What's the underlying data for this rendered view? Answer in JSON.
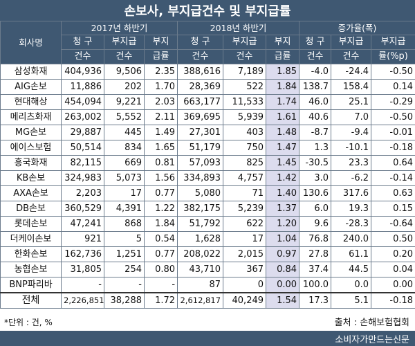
{
  "title": "손보사, 부지급건수 및 부지급률",
  "headers": {
    "company": "회사명",
    "groups": [
      "2017년 하반기",
      "2018년 하반기",
      "증가율(폭)"
    ],
    "sub": [
      "청구\n건수",
      "부지급\n건수",
      "부지\n급률",
      "청구\n건수",
      "부지급\n건수",
      "부지\n급률",
      "청구\n건수",
      "부지급\n건수",
      "부지급\n률(%p)"
    ],
    "sub_top": [
      "청 구",
      "부지급",
      "부지",
      "청 구",
      "부지급",
      "부지",
      "청 구",
      "부지급",
      "부지급"
    ],
    "sub_bottom": [
      "건수",
      "건수",
      "급률",
      "건수",
      "건수",
      "급률",
      "건수",
      "건수",
      "률(%p)"
    ]
  },
  "rows": [
    [
      "삼성화재",
      "404,936",
      "9,506",
      "2.35",
      "388,616",
      "7,189",
      "1.85",
      "-4.0",
      "-24.4",
      "-0.50"
    ],
    [
      "AIG손보",
      "11,886",
      "202",
      "1.70",
      "28,369",
      "522",
      "1.84",
      "138.7",
      "158.4",
      "0.14"
    ],
    [
      "현대해상",
      "454,094",
      "9,221",
      "2.03",
      "663,177",
      "11,533",
      "1.74",
      "46.0",
      "25.1",
      "-0.29"
    ],
    [
      "메리츠화재",
      "263,002",
      "5,552",
      "2.11",
      "369,695",
      "5,939",
      "1.61",
      "40.6",
      "7.0",
      "-0.50"
    ],
    [
      "MG손보",
      "29,887",
      "445",
      "1.49",
      "27,301",
      "403",
      "1.48",
      "-8.7",
      "-9.4",
      "-0.01"
    ],
    [
      "에이스보험",
      "50,514",
      "834",
      "1.65",
      "51,179",
      "750",
      "1.47",
      "1.3",
      "-10.1",
      "-0.18"
    ],
    [
      "흥국화재",
      "82,115",
      "669",
      "0.81",
      "57,093",
      "825",
      "1.45",
      "-30.5",
      "23.3",
      "0.64"
    ],
    [
      "KB손보",
      "324,983",
      "5,073",
      "1.56",
      "334,893",
      "4,757",
      "1.42",
      "3.0",
      "-6.2",
      "-0.14"
    ],
    [
      "AXA손보",
      "2,203",
      "17",
      "0.77",
      "5,080",
      "71",
      "1.40",
      "130.6",
      "317.6",
      "0.63"
    ],
    [
      "DB손보",
      "360,529",
      "4,391",
      "1.22",
      "382,175",
      "5,239",
      "1.37",
      "6.0",
      "19.3",
      "0.15"
    ],
    [
      "롯데손보",
      "47,241",
      "868",
      "1.84",
      "51,792",
      "622",
      "1.20",
      "9.6",
      "-28.3",
      "-0.64"
    ],
    [
      "더케이손보",
      "921",
      "5",
      "0.54",
      "1,628",
      "17",
      "1.04",
      "76.8",
      "240.0",
      "0.50"
    ],
    [
      "한화손보",
      "162,736",
      "1,251",
      "0.77",
      "208,022",
      "2,015",
      "0.97",
      "27.8",
      "61.1",
      "0.20"
    ],
    [
      "농협손보",
      "31,805",
      "254",
      "0.80",
      "43,710",
      "367",
      "0.84",
      "37.4",
      "44.5",
      "0.04"
    ],
    [
      "BNP파리바",
      "-",
      "-",
      "-",
      "87",
      "0",
      "0.00",
      "100.0",
      "0.0",
      "0.00"
    ]
  ],
  "total": [
    "전체",
    "2,226,851",
    "38,288",
    "1.72",
    "2,612,817",
    "40,249",
    "1.54",
    "17.3",
    "5.1",
    "-0.18"
  ],
  "unit_note": "*단위 : 건, %",
  "source": "출처 : 손해보험협회",
  "brand": "소비자가만드는신문",
  "colors": {
    "header_bg": "#3f5872",
    "highlight": "#dcdcee"
  }
}
